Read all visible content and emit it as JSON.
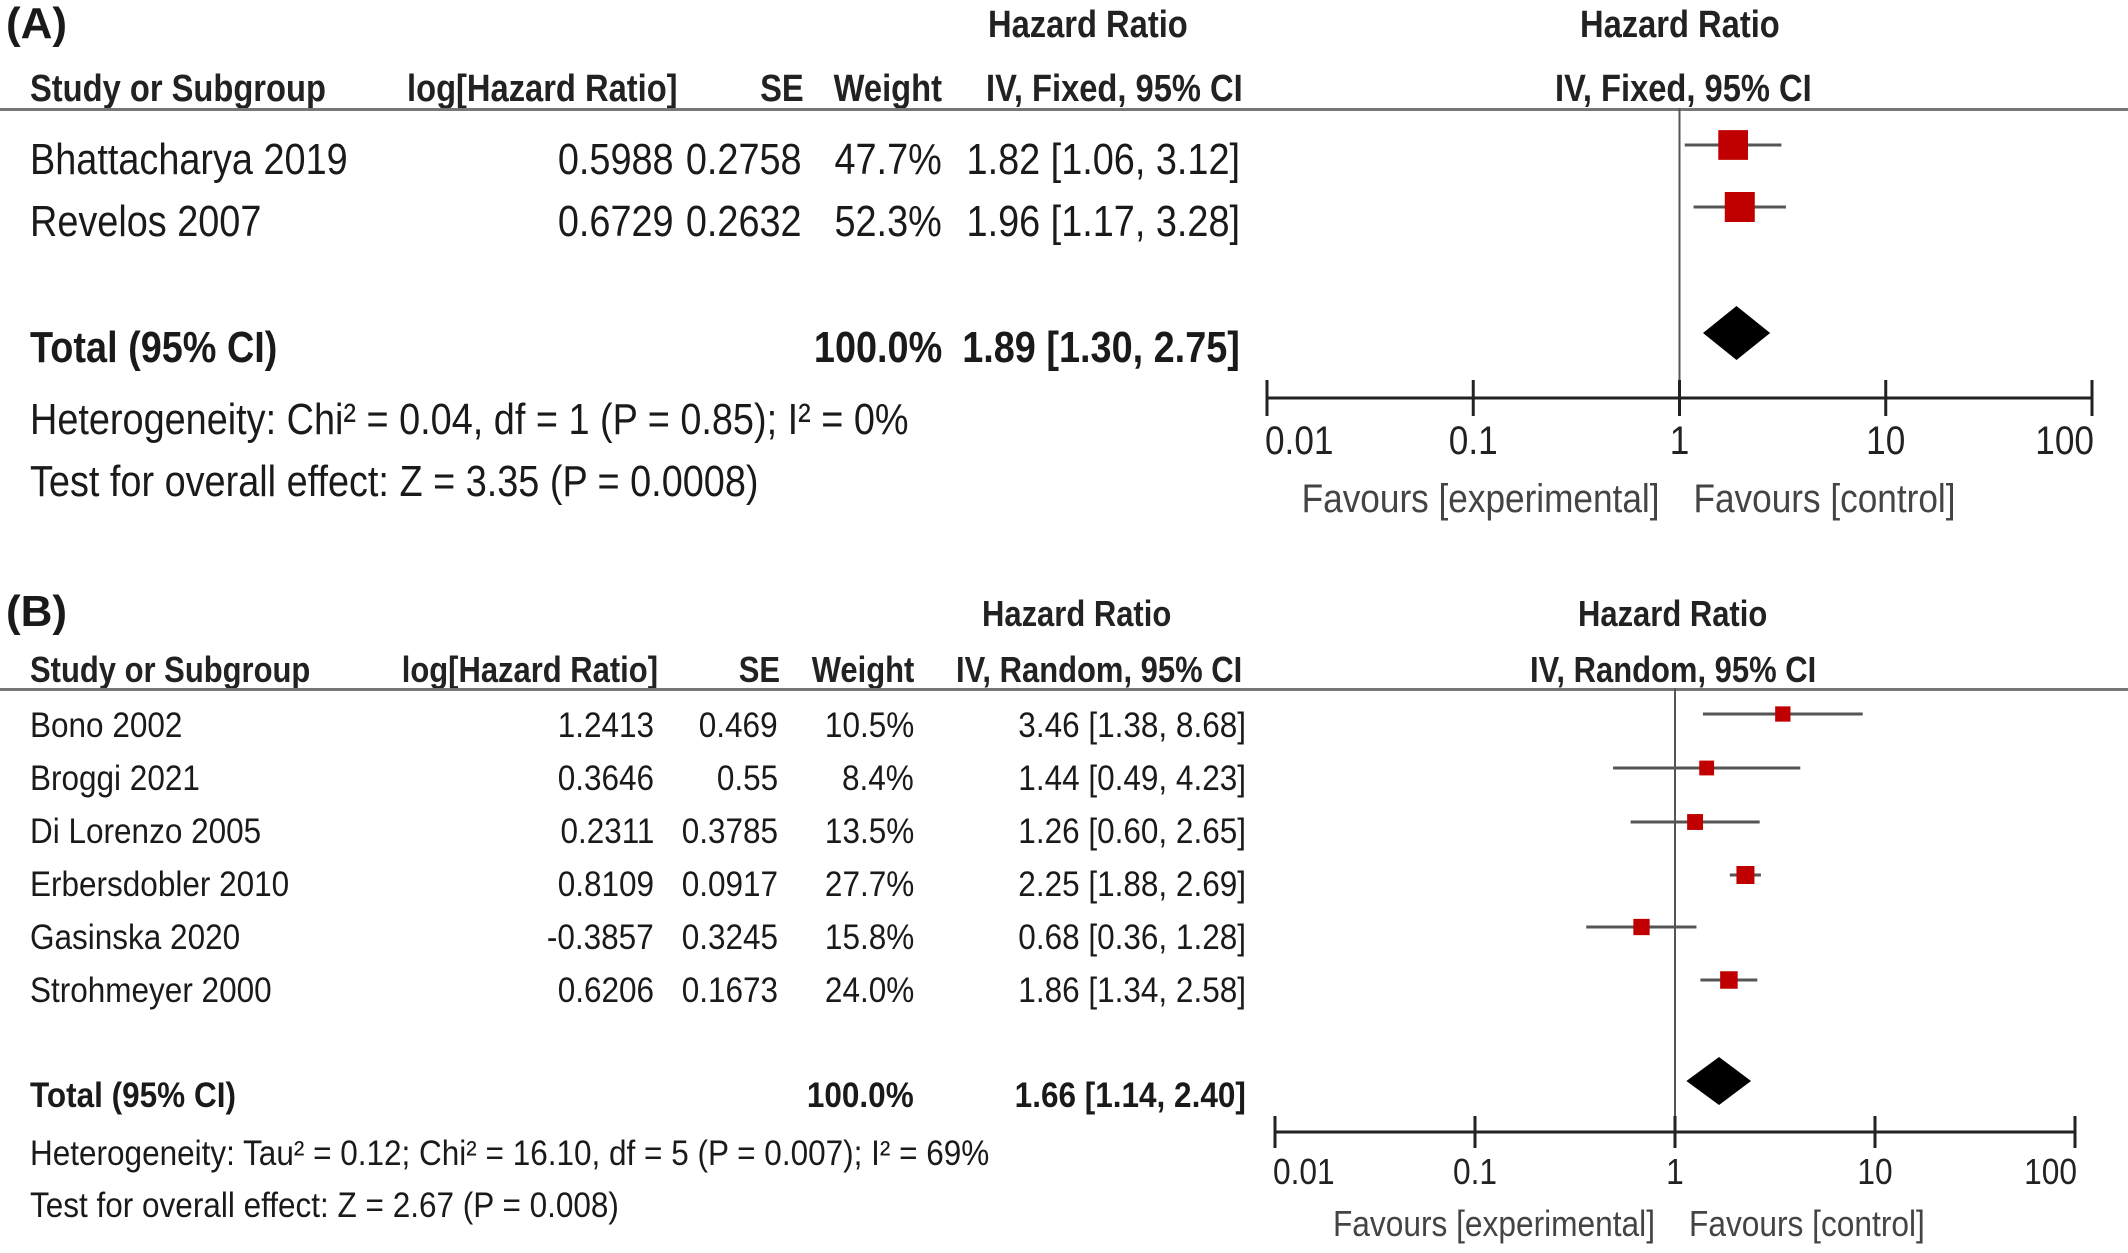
{
  "panels": [
    {
      "label": "(A)",
      "header": {
        "hr_top": "Hazard Ratio",
        "plot_top": "Hazard Ratio",
        "study": "Study or Subgroup",
        "log_hr": "log[Hazard Ratio]",
        "se": "SE",
        "weight": "Weight",
        "method": "IV, Fixed, 95% CI",
        "plot_method": "IV, Fixed, 95% CI"
      },
      "studies": [
        {
          "name": "Bhattacharya 2019",
          "log_hr": "0.5988",
          "se": "0.2758",
          "weight": "47.7%",
          "ci_text": "1.82 [1.06, 3.12]"
        },
        {
          "name": "Revelos 2007",
          "log_hr": "0.6729",
          "se": "0.2632",
          "weight": "52.3%",
          "ci_text": "1.96 [1.17, 3.28]"
        }
      ],
      "total": {
        "label": "Total (95% CI)",
        "weight": "100.0%",
        "ci_text": "1.89 [1.30, 2.75]"
      },
      "heterogeneity": "Heterogeneity: Chi² = 0.04, df = 1 (P = 0.85); I² = 0%",
      "overall": "Test for overall effect: Z = 3.35 (P = 0.0008)",
      "axis": {
        "ticks": [
          "0.01",
          "0.1",
          "1",
          "10",
          "100"
        ],
        "favours_left": "Favours [experimental]",
        "favours_right": "Favours [control]"
      }
    },
    {
      "label": "(B)",
      "header": {
        "hr_top": "Hazard Ratio",
        "plot_top": "Hazard Ratio",
        "study": "Study or Subgroup",
        "log_hr": "log[Hazard Ratio]",
        "se": "SE",
        "weight": "Weight",
        "method": "IV, Random, 95% CI",
        "plot_method": "IV, Random, 95% CI"
      },
      "studies": [
        {
          "name": "Bono 2002",
          "log_hr": "1.2413",
          "se": "0.469",
          "weight": "10.5%",
          "ci_text": "3.46 [1.38, 8.68]"
        },
        {
          "name": "Broggi 2021",
          "log_hr": "0.3646",
          "se": "0.55",
          "weight": "8.4%",
          "ci_text": "1.44 [0.49, 4.23]"
        },
        {
          "name": "Di Lorenzo 2005",
          "log_hr": "0.2311",
          "se": "0.3785",
          "weight": "13.5%",
          "ci_text": "1.26 [0.60, 2.65]"
        },
        {
          "name": "Erbersdobler 2010",
          "log_hr": "0.8109",
          "se": "0.0917",
          "weight": "27.7%",
          "ci_text": "2.25 [1.88, 2.69]"
        },
        {
          "name": "Gasinska 2020",
          "log_hr": "-0.3857",
          "se": "0.3245",
          "weight": "15.8%",
          "ci_text": "0.68 [0.36, 1.28]"
        },
        {
          "name": "Strohmeyer 2000",
          "log_hr": "0.6206",
          "se": "0.1673",
          "weight": "24.0%",
          "ci_text": "1.86 [1.34, 2.58]"
        }
      ],
      "total": {
        "label": "Total (95% CI)",
        "weight": "100.0%",
        "ci_text": "1.66 [1.14, 2.40]"
      },
      "heterogeneity": "Heterogeneity: Tau² = 0.12; Chi² = 16.10, df = 5 (P = 0.007); I² = 69%",
      "overall": "Test for overall effect: Z = 2.67 (P = 0.008)",
      "axis": {
        "ticks": [
          "0.01",
          "0.1",
          "1",
          "10",
          "100"
        ],
        "favours_left": "Favours [experimental]",
        "favours_right": "Favours [control]"
      }
    }
  ],
  "chart_data": [
    {
      "type": "forest",
      "xscale": "log",
      "xlim": [
        0.01,
        100
      ],
      "marker_color": "#c00000",
      "studies": [
        {
          "name": "Bhattacharya 2019",
          "hr": 1.82,
          "lo": 1.06,
          "hi": 3.12,
          "weight": 47.7
        },
        {
          "name": "Revelos 2007",
          "hr": 1.96,
          "lo": 1.17,
          "hi": 3.28,
          "weight": 52.3
        }
      ],
      "total": {
        "hr": 1.89,
        "lo": 1.3,
        "hi": 2.75
      }
    },
    {
      "type": "forest",
      "xscale": "log",
      "xlim": [
        0.01,
        100
      ],
      "marker_color": "#c00000",
      "studies": [
        {
          "name": "Bono 2002",
          "hr": 3.46,
          "lo": 1.38,
          "hi": 8.68,
          "weight": 10.5
        },
        {
          "name": "Broggi 2021",
          "hr": 1.44,
          "lo": 0.49,
          "hi": 4.23,
          "weight": 8.4
        },
        {
          "name": "Di Lorenzo 2005",
          "hr": 1.26,
          "lo": 0.6,
          "hi": 2.65,
          "weight": 13.5
        },
        {
          "name": "Erbersdobler 2010",
          "hr": 2.25,
          "lo": 1.88,
          "hi": 2.69,
          "weight": 27.7
        },
        {
          "name": "Gasinska 2020",
          "hr": 0.68,
          "lo": 0.36,
          "hi": 1.28,
          "weight": 15.8
        },
        {
          "name": "Strohmeyer 2000",
          "hr": 1.86,
          "lo": 1.34,
          "hi": 2.58,
          "weight": 24.0
        }
      ],
      "total": {
        "hr": 1.66,
        "lo": 1.14,
        "hi": 2.4
      }
    }
  ]
}
